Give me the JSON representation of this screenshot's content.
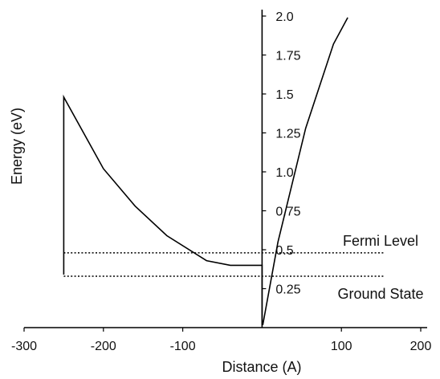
{
  "chart_data": {
    "type": "line",
    "title": "",
    "xlabel": "Distance (A)",
    "ylabel": "Energy (eV)",
    "xlim": [
      -300,
      200
    ],
    "ylim": [
      0,
      2.0
    ],
    "x_ticks": [
      {
        "value": -300,
        "label": "-300"
      },
      {
        "value": -200,
        "label": "-200"
      },
      {
        "value": -100,
        "label": "-100"
      },
      {
        "value": 100,
        "label": "100"
      },
      {
        "value": 200,
        "label": "200"
      }
    ],
    "y_ticks": [
      {
        "value": 0.25,
        "label": "0.25"
      },
      {
        "value": 0.5,
        "label": "0.5"
      },
      {
        "value": 0.75,
        "label": "0.75"
      },
      {
        "value": 1.0,
        "label": "1.0"
      },
      {
        "value": 1.25,
        "label": "1.25"
      },
      {
        "value": 1.5,
        "label": "1.5"
      },
      {
        "value": 1.75,
        "label": "1.75"
      },
      {
        "value": 2.0,
        "label": "2.0"
      }
    ],
    "series": [
      {
        "points": [
          [
            -250,
            0.34
          ],
          [
            -250,
            1.48
          ],
          [
            -200,
            1.02
          ],
          [
            -160,
            0.78
          ],
          [
            -120,
            0.59
          ],
          [
            -70,
            0.43
          ],
          [
            -40,
            0.4
          ],
          [
            0,
            0.4
          ],
          [
            0,
            0.02
          ],
          [
            1,
            0.02
          ],
          [
            20,
            0.55
          ],
          [
            55,
            1.28
          ],
          [
            90,
            1.82
          ],
          [
            108,
            1.99
          ]
        ]
      }
    ],
    "reference_lines": [
      {
        "y": 0.48,
        "x_from": -250,
        "x_to": 155,
        "style": "dotted",
        "label": "Fermi Level"
      },
      {
        "y": 0.33,
        "x_from": -250,
        "x_to": 155,
        "style": "dotted",
        "label": "Ground State"
      }
    ],
    "grid": false,
    "legend": "none"
  }
}
